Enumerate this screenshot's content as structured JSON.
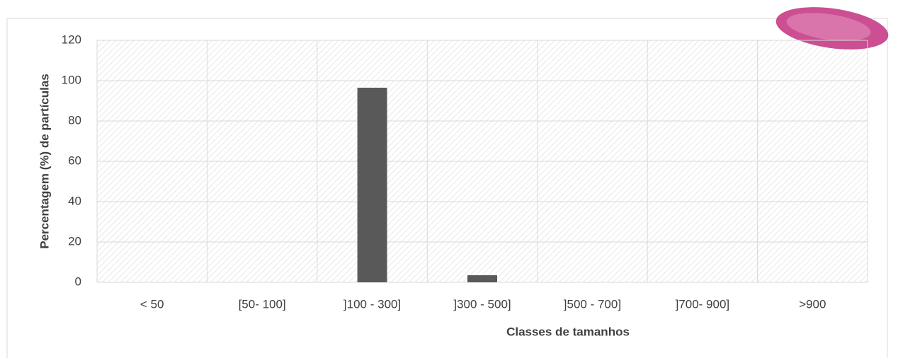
{
  "chart_data": {
    "type": "bar",
    "x_label": "Classes de tamanhos",
    "y_label": "Percentagem (%) de partículas",
    "categories": [
      "< 50",
      "[50- 100]",
      "]100 - 300]",
      "]300 - 500]",
      "]500 - 700]",
      "]700- 900]",
      ">900"
    ],
    "values": [
      0,
      0,
      96.5,
      3.5,
      0,
      0,
      0
    ],
    "color": "#595959",
    "ylim": [
      0,
      120
    ],
    "yticks": [
      0,
      20,
      40,
      60,
      80,
      100,
      120
    ],
    "grid": true
  }
}
